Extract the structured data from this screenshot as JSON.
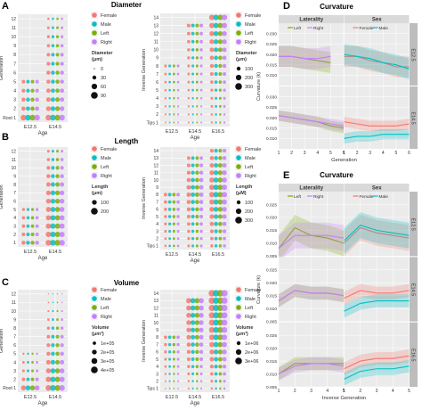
{
  "figure": {
    "colors": {
      "female": "#f8766d",
      "male": "#00bfc4",
      "left": "#7cae00",
      "right": "#c77cff",
      "strip": "#d9d9d9",
      "panel": "#ebebeb",
      "grid": "#ffffff"
    },
    "panel_letters": {
      "A": "A",
      "B": "B",
      "C": "C",
      "D": "D",
      "E": "E"
    },
    "section_titles": {
      "A": "Diameter",
      "B": "Length",
      "C": "Volume",
      "D": "Curvature",
      "E": "Curvature"
    },
    "ages": [
      "E12.5",
      "E14.5",
      "E16.5"
    ],
    "y_axis": {
      "generation": "Generation",
      "inverse_generation": "Inverse Generation",
      "curvature": "Curvature (k)"
    },
    "x_axis": {
      "age": "Age",
      "generation": "Generation",
      "inverse_generation": "Inverse Generation"
    },
    "facet_col": {
      "laterality": "Laterality",
      "sex": "Sex"
    },
    "legend_groups": [
      "Female",
      "Male",
      "Left",
      "Right"
    ]
  },
  "chart_data": [
    {
      "id": "A-left",
      "type": "scatter",
      "ylabel": "Generation",
      "xlabel": "Age",
      "categories": [
        "E12.5",
        "E14.5"
      ],
      "y_ticks": [
        "Root 1",
        "2",
        "3",
        "4",
        "5",
        "6",
        "7",
        "8",
        "9",
        "10",
        "11",
        "12"
      ],
      "groups": [
        "Female",
        "Male",
        "Left",
        "Right"
      ],
      "size_legend": {
        "title": "Diameter (μm)",
        "values": [
          0,
          30,
          60,
          90
        ]
      },
      "series": [
        {
          "age": "E12.5",
          "gen_max": 5,
          "size": [
            90,
            50,
            45,
            40,
            35
          ]
        },
        {
          "age": "E14.5",
          "gen_max": 12,
          "size": [
            90,
            60,
            55,
            50,
            45,
            45,
            40,
            35,
            30,
            25,
            20,
            15
          ]
        }
      ]
    },
    {
      "id": "A-right",
      "type": "scatter",
      "ylabel": "Inverse Generation",
      "xlabel": "Age",
      "categories": [
        "E12.5",
        "E14.5",
        "E16.5"
      ],
      "y_ticks": [
        "Tips 1",
        "2",
        "3",
        "4",
        "5",
        "6",
        "7",
        "8",
        "9",
        "10",
        "11",
        "12",
        "13",
        "14"
      ],
      "groups": [
        "Female",
        "Male",
        "Left",
        "Right"
      ],
      "size_legend": {
        "title": "Diameter (μm)",
        "values": [
          100,
          200,
          300
        ]
      },
      "series": [
        {
          "age": "E12.5",
          "gen_max": 8,
          "size": [
            25,
            35,
            40,
            45,
            50,
            55,
            60,
            70
          ]
        },
        {
          "age": "E14.5",
          "gen_max": 13,
          "size": [
            30,
            35,
            40,
            45,
            55,
            60,
            65,
            70,
            80,
            90,
            100,
            110,
            120
          ]
        },
        {
          "age": "E16.5",
          "gen_max": 14,
          "size": [
            40,
            50,
            60,
            70,
            80,
            100,
            120,
            140,
            160,
            180,
            200,
            220,
            250,
            280
          ]
        }
      ]
    },
    {
      "id": "B-left",
      "type": "scatter",
      "ylabel": "Generation",
      "xlabel": "Age",
      "categories": [
        "E12.5",
        "E14.5"
      ],
      "y_ticks": [
        "1",
        "2",
        "3",
        "4",
        "5",
        "6",
        "7",
        "8",
        "9",
        "10",
        "11",
        "12"
      ],
      "groups": [
        "Female",
        "Male",
        "Left",
        "Right"
      ],
      "size_legend": {
        "title": "Length (μm)",
        "values": [
          100,
          200
        ]
      },
      "series": [
        {
          "age": "E12.5",
          "gen_max": 5,
          "size": [
            110,
            90,
            80,
            70,
            60
          ]
        },
        {
          "age": "E14.5",
          "gen_max": 12,
          "size": [
            220,
            200,
            190,
            180,
            170,
            160,
            150,
            130,
            110,
            90,
            70,
            50
          ]
        }
      ]
    },
    {
      "id": "B-right",
      "type": "scatter",
      "ylabel": "Inverse Generation",
      "xlabel": "Age",
      "categories": [
        "E12.5",
        "E14.5",
        "E16.5"
      ],
      "y_ticks": [
        "Tips 1",
        "2",
        "3",
        "4",
        "5",
        "6",
        "7",
        "8",
        "9",
        "10",
        "11",
        "12",
        "13",
        "14"
      ],
      "groups": [
        "Female",
        "Male",
        "Left",
        "Right"
      ],
      "size_legend": {
        "title": "Length (μM)",
        "values": [
          100,
          200,
          300
        ]
      },
      "series": [
        {
          "age": "E12.5",
          "gen_max": 8,
          "size": [
            60,
            70,
            80,
            90,
            100,
            110,
            120,
            130
          ]
        },
        {
          "age": "E14.5",
          "gen_max": 13,
          "size": [
            80,
            90,
            100,
            120,
            140,
            160,
            180,
            200,
            200,
            180,
            160,
            140,
            120
          ]
        },
        {
          "age": "E16.5",
          "gen_max": 14,
          "size": [
            100,
            120,
            150,
            180,
            210,
            240,
            270,
            300,
            290,
            260,
            230,
            200,
            170,
            140
          ]
        }
      ]
    },
    {
      "id": "C-left",
      "type": "scatter",
      "ylabel": "Generation",
      "xlabel": "Age",
      "categories": [
        "E12.5",
        "E14.5"
      ],
      "y_ticks": [
        "Root 1",
        "2",
        "3",
        "4",
        "5",
        "6",
        "7",
        "8",
        "9",
        "10",
        "11",
        "12"
      ],
      "groups": [
        "Female",
        "Male",
        "Left",
        "Right"
      ],
      "size_legend": {
        "title": "Volume (μm³)",
        "values": [
          "1e+05",
          "2e+05",
          "3e+05",
          "4e+05"
        ]
      },
      "series": [
        {
          "age": "E12.5",
          "gen_max": 5,
          "size": [
            300000,
            150000,
            100000,
            80000,
            60000
          ]
        },
        {
          "age": "E14.5",
          "gen_max": 12,
          "size": [
            400000,
            350000,
            300000,
            250000,
            200000,
            180000,
            150000,
            120000,
            80000,
            50000,
            30000,
            20000
          ]
        }
      ]
    },
    {
      "id": "C-right",
      "type": "scatter",
      "ylabel": "Inverse Generation",
      "xlabel": "Age",
      "categories": [
        "E12.5",
        "E14.5",
        "E16.5"
      ],
      "y_ticks": [
        "Tips 1",
        "2",
        "3",
        "4",
        "5",
        "6",
        "7",
        "8",
        "9",
        "10",
        "11",
        "12",
        "13",
        "14"
      ],
      "groups": [
        "Female",
        "Male",
        "Left",
        "Right"
      ],
      "size_legend": {
        "title": "Volume (μm³)",
        "values": [
          "1e+06",
          "2e+06",
          "3e+06"
        ]
      },
      "series": [
        {
          "age": "E12.5",
          "gen_max": 8,
          "size": [
            200000,
            300000,
            400000,
            500000,
            600000,
            700000,
            800000,
            900000
          ]
        },
        {
          "age": "E14.5",
          "gen_max": 13,
          "size": [
            300000,
            400000,
            600000,
            800000,
            1000000,
            1200000,
            1400000,
            1600000,
            1700000,
            1800000,
            1900000,
            2000000,
            2100000
          ]
        },
        {
          "age": "E16.5",
          "gen_max": 14,
          "size": [
            400000,
            600000,
            900000,
            1200000,
            1500000,
            1800000,
            2100000,
            2400000,
            2600000,
            2800000,
            3000000,
            3100000,
            3200000,
            3300000
          ]
        }
      ]
    },
    {
      "id": "D",
      "type": "line",
      "xlabel": "Generation",
      "ylabel": "Curvature (k)",
      "facets_col": [
        "Laterality",
        "Sex"
      ],
      "facets_row": [
        "E12.5",
        "E14.5"
      ],
      "ylim": [
        0.005,
        0.035
      ],
      "y_ticks": [
        0.01,
        0.015,
        0.02,
        0.025,
        0.03
      ],
      "x_ticks": [
        1,
        2,
        3,
        4,
        5,
        6
      ],
      "legends": {
        "Laterality": [
          "Left",
          "Right"
        ],
        "Sex": [
          "Female",
          "Male"
        ]
      },
      "panels": [
        {
          "row": "E12.5",
          "col": "Laterality",
          "x": [
            1,
            2,
            3,
            4,
            5
          ],
          "series": [
            {
              "name": "Left",
              "values": [
                0.019,
                0.019,
                0.018,
                0.017,
                0.016
              ]
            },
            {
              "name": "Right",
              "values": [
                0.019,
                0.019,
                0.018,
                0.018,
                0.019
              ]
            }
          ]
        },
        {
          "row": "E12.5",
          "col": "Sex",
          "x": [
            1,
            2,
            3,
            4,
            5,
            6
          ],
          "series": [
            {
              "name": "Female",
              "values": [
                0.019,
                0.019,
                0.017,
                0.016,
                0.014,
                0.014
              ]
            },
            {
              "name": "Male",
              "values": [
                0.02,
                0.019,
                0.018,
                0.016,
                0.015,
                0.013
              ]
            }
          ]
        },
        {
          "row": "E14.5",
          "col": "Laterality",
          "x": [
            1,
            2,
            3,
            4,
            5,
            6
          ],
          "series": [
            {
              "name": "Left",
              "values": [
                0.021,
                0.02,
                0.019,
                0.018,
                0.016,
                0.015
              ]
            },
            {
              "name": "Right",
              "values": [
                0.021,
                0.02,
                0.019,
                0.018,
                0.017,
                0.016
              ]
            }
          ]
        },
        {
          "row": "E14.5",
          "col": "Sex",
          "x": [
            1,
            2,
            3,
            4,
            5,
            6
          ],
          "series": [
            {
              "name": "Female",
              "values": [
                0.018,
                0.017,
                0.016,
                0.016,
                0.016,
                0.017
              ]
            },
            {
              "name": "Male",
              "values": [
                0.01,
                0.011,
                0.011,
                0.012,
                0.012,
                0.012
              ]
            }
          ]
        }
      ]
    },
    {
      "id": "E",
      "type": "line",
      "xlabel": "Inverse Generation",
      "ylabel": "Curvature (k)",
      "facets_col": [
        "Laterality",
        "Sex"
      ],
      "facets_row": [
        "E12.5",
        "E14.5",
        "E16.5"
      ],
      "ylim": [
        0.005,
        0.03
      ],
      "y_ticks": [
        0.005,
        0.01,
        0.015,
        0.02,
        0.025
      ],
      "x_ticks": [
        1,
        2,
        3,
        4,
        5
      ],
      "legends": {
        "Laterality": [
          "Left",
          "Right"
        ],
        "Sex": [
          "Female",
          "Male"
        ]
      },
      "panels": [
        {
          "row": "E12.5",
          "col": "Laterality",
          "x": [
            1,
            2,
            3,
            4,
            5
          ],
          "series": [
            {
              "name": "Left",
              "values": [
                0.008,
                0.016,
                0.013,
                0.012,
                0.01
              ]
            },
            {
              "name": "Right",
              "values": [
                0.008,
                0.013,
                0.013,
                0.013,
                0.012
              ]
            }
          ]
        },
        {
          "row": "E12.5",
          "col": "Sex",
          "x": [
            1,
            2,
            3,
            4,
            5
          ],
          "series": [
            {
              "name": "Female",
              "values": [
                0.01,
                0.016,
                0.014,
                0.013,
                0.012
              ]
            },
            {
              "name": "Male",
              "values": [
                0.011,
                0.017,
                0.015,
                0.014,
                0.013
              ]
            }
          ]
        },
        {
          "row": "E14.5",
          "col": "Laterality",
          "x": [
            1,
            2,
            3,
            4,
            5
          ],
          "series": [
            {
              "name": "Left",
              "values": [
                0.013,
                0.017,
                0.016,
                0.016,
                0.015
              ]
            },
            {
              "name": "Right",
              "values": [
                0.013,
                0.017,
                0.016,
                0.016,
                0.015
              ]
            }
          ]
        },
        {
          "row": "E14.5",
          "col": "Sex",
          "x": [
            1,
            2,
            3,
            4,
            5
          ],
          "series": [
            {
              "name": "Female",
              "values": [
                0.014,
                0.017,
                0.016,
                0.016,
                0.017
              ]
            },
            {
              "name": "Male",
              "values": [
                0.009,
                0.012,
                0.013,
                0.013,
                0.013
              ]
            }
          ]
        },
        {
          "row": "E16.5",
          "col": "Laterality",
          "x": [
            1,
            2,
            3,
            4,
            5
          ],
          "series": [
            {
              "name": "Left",
              "values": [
                0.01,
                0.014,
                0.014,
                0.014,
                0.014
              ]
            },
            {
              "name": "Right",
              "values": [
                0.01,
                0.013,
                0.014,
                0.014,
                0.013
              ]
            }
          ]
        },
        {
          "row": "E16.5",
          "col": "Sex",
          "x": [
            1,
            2,
            3,
            4,
            5
          ],
          "series": [
            {
              "name": "Female",
              "values": [
                0.012,
                0.015,
                0.016,
                0.016,
                0.017
              ]
            },
            {
              "name": "Male",
              "values": [
                0.008,
                0.011,
                0.012,
                0.012,
                0.013
              ]
            }
          ]
        }
      ]
    }
  ]
}
